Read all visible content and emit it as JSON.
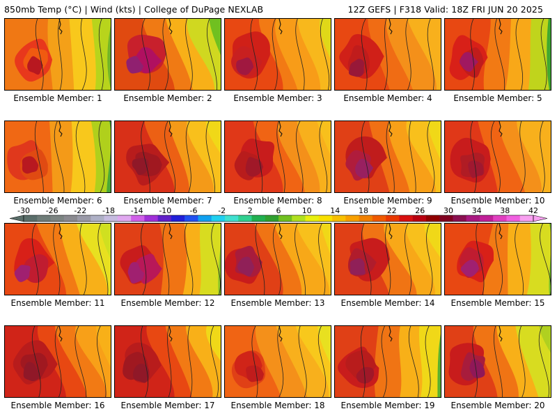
{
  "header": {
    "left": "850mb Temp (°C) | Wind (kts) | College of DuPage NEXLAB",
    "right": "12Z GEFS | F318 Valid: 18Z FRI JUN 20 2025"
  },
  "colorbar": {
    "labels": [
      "-30",
      "-26",
      "-22",
      "-18",
      "-14",
      "-10",
      "-6",
      "-2",
      "2",
      "6",
      "10",
      "14",
      "18",
      "22",
      "26",
      "30",
      "34",
      "38",
      "42"
    ],
    "colors": [
      "#5a6e6a",
      "#6e7c78",
      "#7c8482",
      "#8a8a90",
      "#9a9aa8",
      "#aeb0c6",
      "#c6bce0",
      "#e0a8f0",
      "#d060e8",
      "#a030d8",
      "#6020c8",
      "#2020d8",
      "#2050f0",
      "#10a0f0",
      "#20d0f0",
      "#40e0d0",
      "#30d090",
      "#20b050",
      "#30a030",
      "#70c020",
      "#b0e020",
      "#e8f010",
      "#f8e000",
      "#f8c000",
      "#f8a000",
      "#f08000",
      "#f05a00",
      "#e83800",
      "#d81010",
      "#b80010",
      "#900000",
      "#800020",
      "#8a1050",
      "#a81880",
      "#c02098",
      "#e040c0",
      "#f060e0",
      "#f8a0f0"
    ]
  },
  "panels": [
    {
      "caption": "Ensemble Member: 1",
      "colors": [
        "#e8381c",
        "#f07814",
        "#f4a018",
        "#f8c81c",
        "#b8d41c",
        "#70b428",
        "#b81820",
        "#f05a10"
      ],
      "regime": "ridge-west"
    },
    {
      "caption": "Ensemble Member: 2",
      "colors": [
        "#c8202c",
        "#e04a10",
        "#f07a14",
        "#f8b018",
        "#d0d820",
        "#70c020",
        "#902070",
        "#b01060"
      ],
      "regime": "hot-west"
    },
    {
      "caption": "Ensemble Member: 3",
      "colors": [
        "#d02018",
        "#e84812",
        "#f27a14",
        "#f89c18",
        "#f8b81c",
        "#e0d818",
        "#a01840",
        "#c82020"
      ],
      "regime": "hot-center"
    },
    {
      "caption": "Ensemble Member: 4",
      "colors": [
        "#d02018",
        "#e84812",
        "#f06c14",
        "#f4901a",
        "#f8b01c",
        "#f8b01c",
        "#981838",
        "#c01c1c"
      ],
      "regime": "hot-center"
    },
    {
      "caption": "Ensemble Member: 5",
      "colors": [
        "#d82018",
        "#e84812",
        "#f27a14",
        "#f8a818",
        "#c0d41c",
        "#40a830",
        "#a01860",
        "#c01c1c"
      ],
      "regime": "ridge-west"
    },
    {
      "caption": "Ensemble Member: 6",
      "colors": [
        "#e0381c",
        "#f06814",
        "#f49a18",
        "#f8c81c",
        "#b0d01c",
        "#48a838",
        "#b81820",
        "#e04a12"
      ],
      "regime": "ridge-west"
    },
    {
      "caption": "Ensemble Member: 7",
      "colors": [
        "#b81c1c",
        "#d83018",
        "#ec6014",
        "#f49a18",
        "#f8c01c",
        "#f0d818",
        "#901828",
        "#a01820"
      ],
      "regime": "hot-west"
    },
    {
      "caption": "Ensemble Member: 8",
      "colors": [
        "#c81c1c",
        "#e03818",
        "#f06414",
        "#f4901a",
        "#f8b01c",
        "#f8c01c",
        "#a01828",
        "#b81c1c"
      ],
      "regime": "hot-center"
    },
    {
      "caption": "Ensemble Member: 9",
      "colors": [
        "#c01c1c",
        "#e04016",
        "#f07014",
        "#f8a018",
        "#f8c01c",
        "#f0d818",
        "#982060",
        "#b01c3c"
      ],
      "regime": "hot-west"
    },
    {
      "caption": "Ensemble Member: 10",
      "colors": [
        "#c81c1c",
        "#e03818",
        "#f06414",
        "#f4901a",
        "#f8b01c",
        "#f8b01c",
        "#a01830",
        "#b01c24"
      ],
      "regime": "hot-center"
    },
    {
      "caption": "Ensemble Member: 11",
      "colors": [
        "#d82018",
        "#e84812",
        "#f27a14",
        "#f8b018",
        "#e8e020",
        "#d0e020",
        "#a02070",
        "#c01c30"
      ],
      "regime": "hot-west"
    },
    {
      "caption": "Ensemble Member: 12",
      "colors": [
        "#c81c1c",
        "#e04016",
        "#f07414",
        "#f8b018",
        "#d8dc20",
        "#90c828",
        "#a02070",
        "#b81858"
      ],
      "regime": "ridge-west"
    },
    {
      "caption": "Ensemble Member: 13",
      "colors": [
        "#c81c1c",
        "#e04016",
        "#f07414",
        "#f8a818",
        "#f8c01c",
        "#f0d818",
        "#902058",
        "#a81c3c"
      ],
      "regime": "hot-center"
    },
    {
      "caption": "Ensemble Member: 14",
      "colors": [
        "#c81c1c",
        "#e04016",
        "#f07414",
        "#f8a818",
        "#f8c01c",
        "#f0d818",
        "#902058",
        "#b01c2c"
      ],
      "regime": "hot-west"
    },
    {
      "caption": "Ensemble Member: 15",
      "colors": [
        "#d82018",
        "#e84812",
        "#f27a14",
        "#f8b018",
        "#d8dc20",
        "#78c028",
        "#a02070",
        "#c01c30"
      ],
      "regime": "ridge-west"
    },
    {
      "caption": "Ensemble Member: 16",
      "colors": [
        "#b81c1c",
        "#d02418",
        "#e84812",
        "#f27a14",
        "#f8a018",
        "#f8b018",
        "#901828",
        "#a01820"
      ],
      "regime": "hot-west"
    },
    {
      "caption": "Ensemble Member: 17",
      "colors": [
        "#b81c1c",
        "#d02418",
        "#e84812",
        "#f27a14",
        "#f8b018",
        "#f0d818",
        "#901828",
        "#a01820"
      ],
      "regime": "hot-west"
    },
    {
      "caption": "Ensemble Member: 18",
      "colors": [
        "#e04016",
        "#f06414",
        "#f4901a",
        "#f8b01c",
        "#f8c81c",
        "#e8e020",
        "#c01c1c",
        "#d02418"
      ],
      "regime": "hot-center"
    },
    {
      "caption": "Ensemble Member: 19",
      "colors": [
        "#c81c1c",
        "#e04016",
        "#f07414",
        "#f8b018",
        "#f0d818",
        "#58b030",
        "#a01828",
        "#b81c1c"
      ],
      "regime": "ridge-west"
    },
    {
      "caption": "Ensemble Member: 20",
      "colors": [
        "#c81c1c",
        "#e04016",
        "#f07414",
        "#f8b018",
        "#d8dc20",
        "#b0d020",
        "#901858",
        "#a81c3c"
      ],
      "regime": "hot-west"
    }
  ]
}
